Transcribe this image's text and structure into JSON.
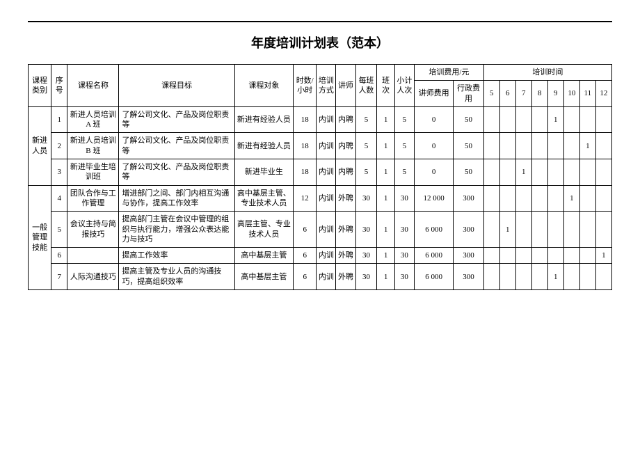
{
  "title": "年度培训计划表（范本）",
  "headers": {
    "category": "课程类别",
    "num": "序号",
    "name": "课程名称",
    "goal": "课程目标",
    "target": "课程对象",
    "hours": "时数/小时",
    "mode": "培训方式",
    "lecturer": "讲师",
    "perClass": "每班人数",
    "sessions": "班次",
    "totalPpl": "小计人次",
    "feeGroup": "培训费用/元",
    "feeLecturer": "讲师费用",
    "feeAdmin": "行政费用",
    "schedule": "培训时间",
    "months": [
      "5",
      "6",
      "7",
      "8",
      "9",
      "10",
      "11",
      "12"
    ]
  },
  "groups": [
    {
      "category": "新进人员",
      "rows": [
        {
          "num": "1",
          "name": "新进人员培训 A 班",
          "goal": "了解公司文化、产品及岗位职责等",
          "target": "新进有经验人员",
          "hours": "18",
          "mode": "内训",
          "lecturer": "内聘",
          "perClass": "5",
          "sessions": "1",
          "totalPpl": "5",
          "feeLecturer": "0",
          "feeAdmin": "50",
          "months": [
            "",
            "",
            "",
            "",
            "1",
            "",
            "",
            ""
          ]
        },
        {
          "num": "2",
          "name": "新进人员培训 B 班",
          "goal": "了解公司文化、产品及岗位职责等",
          "target": "新进有经验人员",
          "hours": "18",
          "mode": "内训",
          "lecturer": "内聘",
          "perClass": "5",
          "sessions": "1",
          "totalPpl": "5",
          "feeLecturer": "0",
          "feeAdmin": "50",
          "months": [
            "",
            "",
            "",
            "",
            "",
            "",
            "1",
            ""
          ]
        },
        {
          "num": "3",
          "name": "新进毕业生培训班",
          "goal": "了解公司文化、产品及岗位职责等",
          "target": "新进毕业生",
          "hours": "18",
          "mode": "内训",
          "lecturer": "内聘",
          "perClass": "5",
          "sessions": "1",
          "totalPpl": "5",
          "feeLecturer": "0",
          "feeAdmin": "50",
          "months": [
            "",
            "",
            "1",
            "",
            "",
            "",
            "",
            ""
          ]
        }
      ]
    },
    {
      "category": "一般管理技能",
      "rows": [
        {
          "num": "4",
          "name": "团队合作与工作管理",
          "goal": "增进部门之间、部门内相互沟通与协作，提高工作效率",
          "target": "高中基层主管、专业技术人员",
          "hours": "12",
          "mode": "内训",
          "lecturer": "外聘",
          "perClass": "30",
          "sessions": "1",
          "totalPpl": "30",
          "feeLecturer": "12 000",
          "feeAdmin": "300",
          "months": [
            "",
            "",
            "",
            "",
            "",
            "1",
            "",
            ""
          ]
        },
        {
          "num": "5",
          "name": "会议主持与简报技巧",
          "goal": "提高部门主管在会议中管理的组织与执行能力，增强公众表达能力与技巧",
          "target": "高层主管、专业技术人员",
          "hours": "6",
          "mode": "内训",
          "lecturer": "外聘",
          "perClass": "30",
          "sessions": "1",
          "totalPpl": "30",
          "feeLecturer": "6 000",
          "feeAdmin": "300",
          "months": [
            "",
            "1",
            "",
            "",
            "",
            "",
            "",
            ""
          ]
        },
        {
          "num": "6",
          "name": "",
          "goal": "提高工作效率",
          "target": "高中基层主管",
          "hours": "6",
          "mode": "内训",
          "lecturer": "外聘",
          "perClass": "30",
          "sessions": "1",
          "totalPpl": "30",
          "feeLecturer": "6 000",
          "feeAdmin": "300",
          "months": [
            "",
            "",
            "",
            "",
            "",
            "",
            "",
            "1"
          ]
        },
        {
          "num": "7",
          "name": "人际沟通技巧",
          "goal": "提高主管及专业人员的沟通技巧，提高组织效率",
          "target": "高中基层主管",
          "hours": "6",
          "mode": "内训",
          "lecturer": "外聘",
          "perClass": "30",
          "sessions": "1",
          "totalPpl": "30",
          "feeLecturer": "6 000",
          "feeAdmin": "300",
          "months": [
            "",
            "",
            "",
            "",
            "1",
            "",
            "",
            ""
          ]
        }
      ]
    }
  ]
}
